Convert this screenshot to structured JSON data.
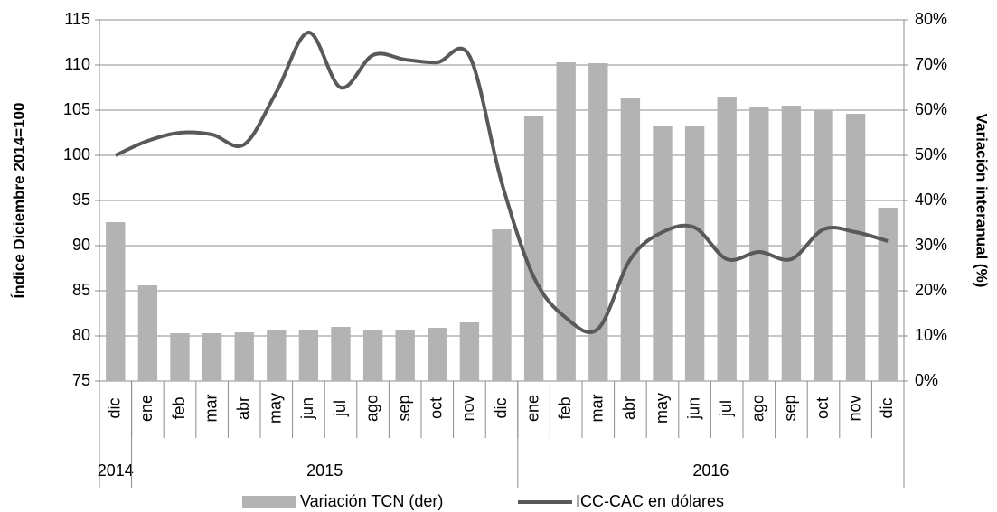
{
  "chart_data": {
    "type": "bar-line",
    "y_label": "Índice Diciembre 2014=100",
    "y2_label": "Variación interanual (%)",
    "categories": [
      "dic",
      "ene",
      "feb",
      "mar",
      "abr",
      "may",
      "jun",
      "jul",
      "ago",
      "sep",
      "oct",
      "nov",
      "dic",
      "ene",
      "feb",
      "mar",
      "abr",
      "may",
      "jun",
      "jul",
      "ago",
      "sep",
      "oct",
      "nov",
      "dic"
    ],
    "groups": [
      {
        "label": "2014",
        "count": 1
      },
      {
        "label": "2015",
        "count": 12
      },
      {
        "label": "2016",
        "count": 12
      }
    ],
    "series": [
      {
        "name": "Variación TCN (der)",
        "type": "bar",
        "axis": "y2",
        "color": "#b3b3b3",
        "values": [
          35.2,
          21.2,
          10.6,
          10.6,
          10.8,
          11.2,
          11.2,
          12,
          11.2,
          11.2,
          11.8,
          13,
          33.6,
          58.6,
          70.6,
          70.4,
          62.6,
          56.4,
          56.4,
          63,
          60.6,
          61,
          60,
          59.2,
          38.4
        ]
      },
      {
        "name": "ICC-CAC en dólares",
        "type": "line",
        "axis": "y",
        "color": "#595959",
        "values": [
          100,
          101.6,
          102.5,
          102.3,
          101.2,
          107,
          113.6,
          107.5,
          111.1,
          110.6,
          110.3,
          111,
          97,
          86.5,
          82,
          80.8,
          88.5,
          91.5,
          92,
          88.5,
          89.3,
          88.5,
          91.8,
          91.5,
          90.5
        ]
      }
    ],
    "ylim": [
      75,
      115
    ],
    "yticks": [
      75,
      80,
      85,
      90,
      95,
      100,
      105,
      110,
      115
    ],
    "y2lim": [
      0,
      80
    ],
    "y2ticks": [
      {
        "value": 0,
        "label": "0%"
      },
      {
        "value": 10,
        "label": "10%"
      },
      {
        "value": 20,
        "label": "20%"
      },
      {
        "value": 30,
        "label": "30%"
      },
      {
        "value": 40,
        "label": "40%"
      },
      {
        "value": 50,
        "label": "50%"
      },
      {
        "value": 60,
        "label": "60%"
      },
      {
        "value": 70,
        "label": "70%"
      },
      {
        "value": 80,
        "label": "80%"
      }
    ],
    "grid": true,
    "legend": "bottom"
  }
}
